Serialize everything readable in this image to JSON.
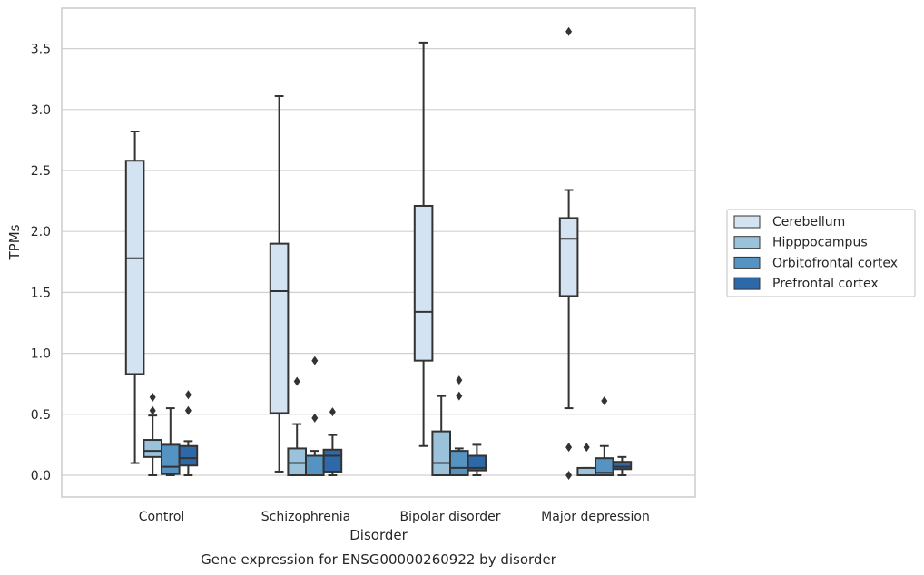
{
  "chart_data": {
    "type": "box",
    "title": "Gene expression for ENSG00000260922 by disorder",
    "xlabel": "Disorder",
    "ylabel": "TPMs",
    "ylim": [
      -0.18,
      3.84
    ],
    "yticks": [
      "0.0",
      "0.5",
      "1.0",
      "1.5",
      "2.0",
      "2.5",
      "3.0",
      "3.5"
    ],
    "grid": true,
    "legend_position": "right",
    "categories": [
      "Control",
      "Schizophrenia",
      "Bipolar disorder",
      "Major depression"
    ],
    "series": [
      {
        "name": "Cerebellum",
        "color": "#d4e3f2",
        "boxes": [
          {
            "whislo": 0.1,
            "q1": 0.83,
            "med": 1.78,
            "q3": 2.58,
            "whishi": 2.82,
            "fliers": []
          },
          {
            "whislo": 0.03,
            "q1": 0.51,
            "med": 1.51,
            "q3": 1.9,
            "whishi": 3.11,
            "fliers": []
          },
          {
            "whislo": 0.24,
            "q1": 0.94,
            "med": 1.34,
            "q3": 2.21,
            "whishi": 3.55,
            "fliers": []
          },
          {
            "whislo": 0.55,
            "q1": 1.47,
            "med": 1.94,
            "q3": 2.11,
            "whishi": 2.34,
            "fliers": [
              3.64,
              0.23,
              0.0
            ]
          }
        ]
      },
      {
        "name": "Hipppocampus",
        "color": "#9ac2db",
        "boxes": [
          {
            "whislo": 0.0,
            "q1": 0.15,
            "med": 0.2,
            "q3": 0.29,
            "whishi": 0.49,
            "fliers": [
              0.53,
              0.64
            ]
          },
          {
            "whislo": 0.0,
            "q1": 0.0,
            "med": 0.1,
            "q3": 0.22,
            "whishi": 0.42,
            "fliers": [
              0.77
            ]
          },
          {
            "whislo": 0.0,
            "q1": 0.0,
            "med": 0.1,
            "q3": 0.36,
            "whishi": 0.65,
            "fliers": []
          },
          {
            "whislo": 0.0,
            "q1": 0.0,
            "med": 0.0,
            "q3": 0.06,
            "whishi": 0.06,
            "fliers": [
              0.23
            ]
          }
        ]
      },
      {
        "name": "Orbitofrontal cortex",
        "color": "#5493c2",
        "boxes": [
          {
            "whislo": 0.0,
            "q1": 0.01,
            "med": 0.07,
            "q3": 0.25,
            "whishi": 0.55,
            "fliers": []
          },
          {
            "whislo": 0.0,
            "q1": 0.0,
            "med": 0.16,
            "q3": 0.16,
            "whishi": 0.2,
            "fliers": [
              0.47,
              0.94
            ]
          },
          {
            "whislo": 0.0,
            "q1": 0.0,
            "med": 0.06,
            "q3": 0.2,
            "whishi": 0.22,
            "fliers": [
              0.65,
              0.78
            ]
          },
          {
            "whislo": 0.0,
            "q1": 0.0,
            "med": 0.02,
            "q3": 0.14,
            "whishi": 0.24,
            "fliers": [
              0.61
            ]
          }
        ]
      },
      {
        "name": "Prefrontal cortex",
        "color": "#2d69a9",
        "boxes": [
          {
            "whislo": 0.0,
            "q1": 0.08,
            "med": 0.14,
            "q3": 0.24,
            "whishi": 0.28,
            "fliers": [
              0.53,
              0.66
            ]
          },
          {
            "whislo": 0.0,
            "q1": 0.03,
            "med": 0.16,
            "q3": 0.21,
            "whishi": 0.33,
            "fliers": [
              0.52
            ]
          },
          {
            "whislo": 0.0,
            "q1": 0.04,
            "med": 0.06,
            "q3": 0.16,
            "whishi": 0.25,
            "fliers": []
          },
          {
            "whislo": 0.0,
            "q1": 0.05,
            "med": 0.07,
            "q3": 0.11,
            "whishi": 0.15,
            "fliers": []
          }
        ]
      }
    ]
  }
}
